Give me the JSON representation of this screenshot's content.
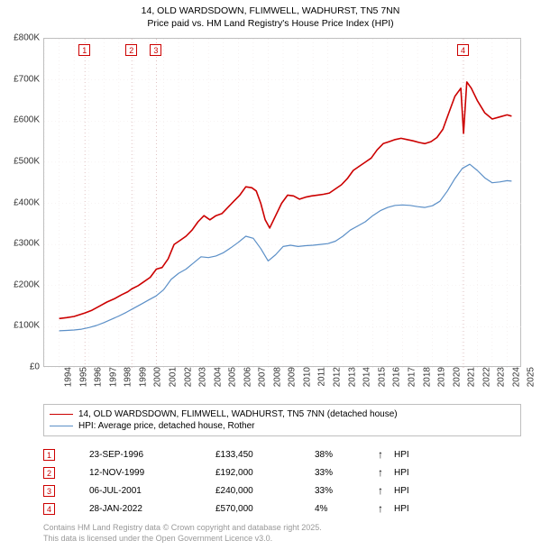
{
  "title": {
    "line1": "14, OLD WARDSDOWN, FLIMWELL, WADHURST, TN5 7NN",
    "line2": "Price paid vs. HM Land Registry's House Price Index (HPI)",
    "fontsize": 10.5,
    "color": "#000000"
  },
  "chart": {
    "type": "line",
    "background_color": "#ffffff",
    "border_color": "#bfbfbf",
    "grid_minor_color": "#f0e8e8",
    "grid_minor_dash": "1,3",
    "x": {
      "min": 1994,
      "max": 2026,
      "ticks": [
        1994,
        1995,
        1996,
        1997,
        1998,
        1999,
        2000,
        2001,
        2002,
        2003,
        2004,
        2005,
        2006,
        2007,
        2008,
        2009,
        2010,
        2011,
        2012,
        2013,
        2014,
        2015,
        2016,
        2017,
        2018,
        2019,
        2020,
        2021,
        2022,
        2023,
        2024,
        2025
      ],
      "label_fontsize": 10,
      "label_rotation": -90
    },
    "y": {
      "min": 0,
      "max": 800000,
      "ticks": [
        0,
        100000,
        200000,
        300000,
        400000,
        500000,
        600000,
        700000,
        800000
      ],
      "tick_labels": [
        "£0",
        "£100K",
        "£200K",
        "£300K",
        "£400K",
        "£500K",
        "£600K",
        "£700K",
        "£800K"
      ],
      "label_fontsize": 10
    },
    "series": [
      {
        "name": "property_price",
        "label": "14, OLD WARDSDOWN, FLIMWELL, WADHURST, TN5 7NN (detached house)",
        "color": "#cc0000",
        "line_width": 1.6,
        "data": [
          [
            1995.0,
            120000
          ],
          [
            1995.5,
            122000
          ],
          [
            1996.0,
            125000
          ],
          [
            1996.73,
            133450
          ],
          [
            1997.2,
            140000
          ],
          [
            1997.7,
            150000
          ],
          [
            1998.2,
            160000
          ],
          [
            1998.7,
            168000
          ],
          [
            1999.2,
            178000
          ],
          [
            1999.6,
            185000
          ],
          [
            1999.87,
            192000
          ],
          [
            2000.3,
            200000
          ],
          [
            2000.7,
            210000
          ],
          [
            2001.1,
            220000
          ],
          [
            2001.51,
            240000
          ],
          [
            2001.9,
            244000
          ],
          [
            2002.3,
            265000
          ],
          [
            2002.7,
            300000
          ],
          [
            2003.1,
            310000
          ],
          [
            2003.5,
            320000
          ],
          [
            2003.9,
            335000
          ],
          [
            2004.3,
            355000
          ],
          [
            2004.7,
            370000
          ],
          [
            2005.1,
            360000
          ],
          [
            2005.5,
            370000
          ],
          [
            2005.9,
            375000
          ],
          [
            2006.3,
            390000
          ],
          [
            2006.7,
            405000
          ],
          [
            2007.1,
            420000
          ],
          [
            2007.5,
            440000
          ],
          [
            2007.9,
            438000
          ],
          [
            2008.2,
            430000
          ],
          [
            2008.5,
            400000
          ],
          [
            2008.8,
            360000
          ],
          [
            2009.1,
            340000
          ],
          [
            2009.5,
            370000
          ],
          [
            2009.9,
            400000
          ],
          [
            2010.3,
            420000
          ],
          [
            2010.7,
            418000
          ],
          [
            2011.1,
            410000
          ],
          [
            2011.5,
            415000
          ],
          [
            2011.9,
            418000
          ],
          [
            2012.3,
            420000
          ],
          [
            2012.7,
            422000
          ],
          [
            2013.1,
            425000
          ],
          [
            2013.5,
            435000
          ],
          [
            2013.9,
            445000
          ],
          [
            2014.3,
            460000
          ],
          [
            2014.7,
            480000
          ],
          [
            2015.1,
            490000
          ],
          [
            2015.5,
            500000
          ],
          [
            2015.9,
            510000
          ],
          [
            2016.3,
            530000
          ],
          [
            2016.7,
            545000
          ],
          [
            2017.1,
            550000
          ],
          [
            2017.5,
            555000
          ],
          [
            2017.9,
            558000
          ],
          [
            2018.3,
            555000
          ],
          [
            2018.7,
            552000
          ],
          [
            2019.1,
            548000
          ],
          [
            2019.5,
            545000
          ],
          [
            2019.9,
            550000
          ],
          [
            2020.3,
            560000
          ],
          [
            2020.7,
            580000
          ],
          [
            2021.1,
            620000
          ],
          [
            2021.5,
            660000
          ],
          [
            2021.9,
            680000
          ],
          [
            2022.08,
            570000
          ],
          [
            2022.3,
            695000
          ],
          [
            2022.6,
            680000
          ],
          [
            2023.0,
            650000
          ],
          [
            2023.5,
            620000
          ],
          [
            2024.0,
            605000
          ],
          [
            2024.5,
            610000
          ],
          [
            2025.0,
            615000
          ],
          [
            2025.3,
            612000
          ]
        ]
      },
      {
        "name": "hpi",
        "label": "HPI: Average price, detached house, Rother",
        "color": "#5b8fc7",
        "line_width": 1.2,
        "data": [
          [
            1995.0,
            90000
          ],
          [
            1995.5,
            91000
          ],
          [
            1996.0,
            92000
          ],
          [
            1996.5,
            94000
          ],
          [
            1997.0,
            98000
          ],
          [
            1997.5,
            103000
          ],
          [
            1998.0,
            110000
          ],
          [
            1998.5,
            118000
          ],
          [
            1999.0,
            126000
          ],
          [
            1999.5,
            135000
          ],
          [
            2000.0,
            145000
          ],
          [
            2000.5,
            155000
          ],
          [
            2001.0,
            165000
          ],
          [
            2001.5,
            175000
          ],
          [
            2002.0,
            190000
          ],
          [
            2002.5,
            215000
          ],
          [
            2003.0,
            230000
          ],
          [
            2003.5,
            240000
          ],
          [
            2004.0,
            255000
          ],
          [
            2004.5,
            270000
          ],
          [
            2005.0,
            268000
          ],
          [
            2005.5,
            272000
          ],
          [
            2006.0,
            280000
          ],
          [
            2006.5,
            292000
          ],
          [
            2007.0,
            305000
          ],
          [
            2007.5,
            320000
          ],
          [
            2008.0,
            315000
          ],
          [
            2008.5,
            290000
          ],
          [
            2009.0,
            260000
          ],
          [
            2009.5,
            275000
          ],
          [
            2010.0,
            295000
          ],
          [
            2010.5,
            298000
          ],
          [
            2011.0,
            295000
          ],
          [
            2011.5,
            297000
          ],
          [
            2012.0,
            298000
          ],
          [
            2012.5,
            300000
          ],
          [
            2013.0,
            302000
          ],
          [
            2013.5,
            308000
          ],
          [
            2014.0,
            320000
          ],
          [
            2014.5,
            335000
          ],
          [
            2015.0,
            345000
          ],
          [
            2015.5,
            355000
          ],
          [
            2016.0,
            370000
          ],
          [
            2016.5,
            382000
          ],
          [
            2017.0,
            390000
          ],
          [
            2017.5,
            395000
          ],
          [
            2018.0,
            396000
          ],
          [
            2018.5,
            395000
          ],
          [
            2019.0,
            392000
          ],
          [
            2019.5,
            390000
          ],
          [
            2020.0,
            394000
          ],
          [
            2020.5,
            405000
          ],
          [
            2021.0,
            430000
          ],
          [
            2021.5,
            460000
          ],
          [
            2022.0,
            485000
          ],
          [
            2022.5,
            495000
          ],
          [
            2023.0,
            480000
          ],
          [
            2023.5,
            462000
          ],
          [
            2024.0,
            450000
          ],
          [
            2024.5,
            452000
          ],
          [
            2025.0,
            455000
          ],
          [
            2025.3,
            454000
          ]
        ]
      }
    ],
    "markers": [
      {
        "n": "1",
        "x": 1996.73,
        "date": "23-SEP-1996",
        "price": "£133,450",
        "pct": "38%",
        "hpi": "HPI"
      },
      {
        "n": "2",
        "x": 1999.87,
        "date": "12-NOV-1999",
        "price": "£192,000",
        "pct": "33%",
        "hpi": "HPI"
      },
      {
        "n": "3",
        "x": 2001.51,
        "date": "06-JUL-2001",
        "price": "£240,000",
        "pct": "33%",
        "hpi": "HPI"
      },
      {
        "n": "4",
        "x": 2022.08,
        "date": "28-JAN-2022",
        "price": "£570,000",
        "pct": "4%",
        "hpi": "HPI"
      }
    ],
    "marker_line_color": "#d8b4b4",
    "marker_line_dash": "1,3",
    "marker_box_border": "#cc0000",
    "arrow_up": "↑"
  },
  "legend": {
    "border_color": "#bfbfbf",
    "fontsize": 10
  },
  "footer": {
    "line1": "Contains HM Land Registry data © Crown copyright and database right 2025.",
    "line2": "This data is licensed under the Open Government Licence v3.0.",
    "color": "#999999",
    "fontsize": 9
  }
}
